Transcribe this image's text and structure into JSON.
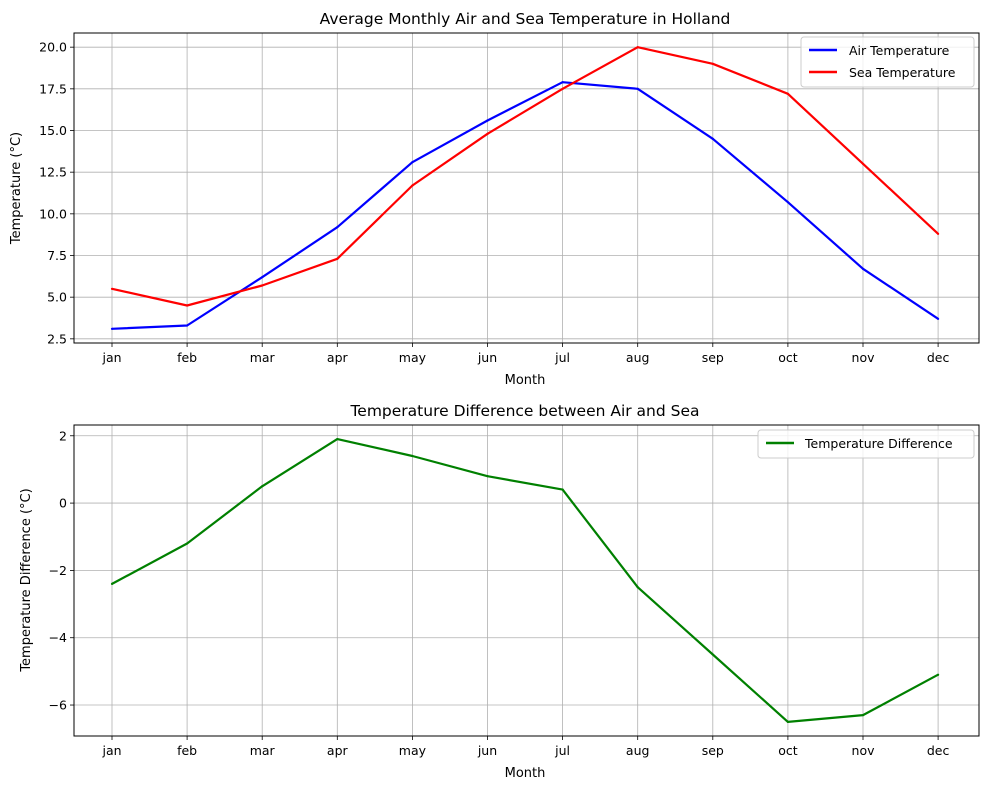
{
  "chart_data": [
    {
      "type": "line",
      "title": "Average Monthly Air and Sea Temperature in Holland",
      "xlabel": "Month",
      "ylabel": "Temperature (°C)",
      "categories": [
        "jan",
        "feb",
        "mar",
        "apr",
        "may",
        "jun",
        "jul",
        "aug",
        "sep",
        "oct",
        "nov",
        "dec"
      ],
      "yticks": [
        2.5,
        5.0,
        7.5,
        10.0,
        12.5,
        15.0,
        17.5,
        20.0
      ],
      "ytick_labels": [
        "2.5",
        "5.0",
        "7.5",
        "10.0",
        "12.5",
        "15.0",
        "17.5",
        "20.0"
      ],
      "ylim": [
        2.25,
        20.85
      ],
      "grid": true,
      "legend_position": "top-right",
      "series": [
        {
          "name": "Air Temperature",
          "color": "#0000ff",
          "values": [
            3.1,
            3.3,
            6.2,
            9.2,
            13.1,
            15.6,
            17.9,
            17.5,
            14.5,
            10.7,
            6.7,
            3.7
          ]
        },
        {
          "name": "Sea Temperature",
          "color": "#ff0000",
          "values": [
            5.5,
            4.5,
            5.7,
            7.3,
            11.7,
            14.8,
            17.5,
            20.0,
            19.0,
            17.2,
            13.0,
            8.8
          ]
        }
      ]
    },
    {
      "type": "line",
      "title": "Temperature Difference between Air and Sea",
      "xlabel": "Month",
      "ylabel": "Temperature Difference (°C)",
      "categories": [
        "jan",
        "feb",
        "mar",
        "apr",
        "may",
        "jun",
        "jul",
        "aug",
        "sep",
        "oct",
        "nov",
        "dec"
      ],
      "yticks": [
        -6,
        -4,
        -2,
        0,
        2
      ],
      "ytick_labels": [
        "−6",
        "−4",
        "−2",
        "0",
        "2"
      ],
      "ylim": [
        -6.92,
        2.32
      ],
      "grid": true,
      "legend_position": "top-right",
      "series": [
        {
          "name": "Temperature Difference",
          "color": "#008000",
          "values": [
            -2.4,
            -1.2,
            0.5,
            1.9,
            1.4,
            0.8,
            0.4,
            -2.5,
            -4.5,
            -6.5,
            -6.3,
            -5.1
          ]
        }
      ]
    }
  ]
}
